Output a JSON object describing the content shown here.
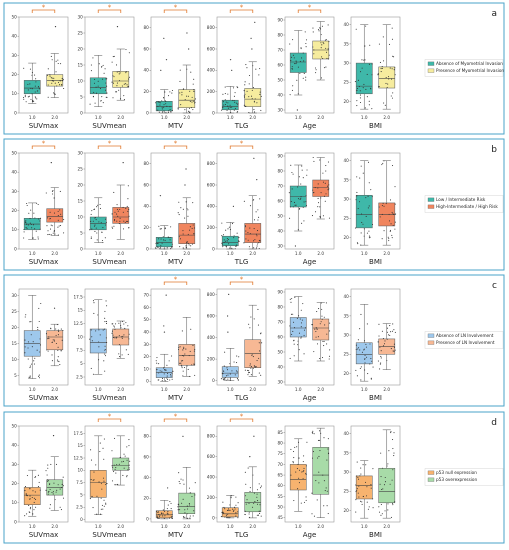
{
  "chart_data": [
    {
      "panel": "a",
      "type": "box",
      "categories": [
        "1.0",
        "2.0"
      ],
      "colors": [
        "#3fb8a9",
        "#f6ec9e"
      ],
      "legend": [
        "Absence of Myometrial Invasion",
        "Presence of Myometrial Invasion"
      ],
      "subplots": [
        {
          "label": "SUVmax",
          "yticks": [
            0,
            10,
            20,
            30,
            40,
            50
          ],
          "ylim": [
            0,
            50
          ],
          "sig": true,
          "boxes": [
            {
              "q1": 10,
              "median": 13,
              "q3": 17,
              "wlo": 5,
              "whi": 26
            },
            {
              "q1": 14,
              "median": 17,
              "q3": 20,
              "wlo": 8,
              "whi": 31
            }
          ],
          "outliers": [
            [],
            [
              45
            ]
          ]
        },
        {
          "label": "SUVmean",
          "yticks": [
            0,
            5,
            10,
            15,
            20,
            25,
            30
          ],
          "ylim": [
            0,
            30
          ],
          "sig": true,
          "boxes": [
            {
              "q1": 6,
              "median": 8,
              "q3": 11,
              "wlo": 2,
              "whi": 18
            },
            {
              "q1": 8,
              "median": 10,
              "q3": 13,
              "wlo": 4,
              "whi": 20
            }
          ],
          "outliers": [
            [],
            [
              27
            ]
          ]
        },
        {
          "label": "MTV",
          "yticks": [
            0,
            20,
            40,
            60,
            80
          ],
          "ylim": [
            0,
            90
          ],
          "sig": true,
          "boxes": [
            {
              "q1": 2,
              "median": 6,
              "q3": 11,
              "wlo": 0,
              "whi": 22
            },
            {
              "q1": 5,
              "median": 12,
              "q3": 22,
              "wlo": 0,
              "whi": 45
            }
          ],
          "outliers": [
            [
              40,
              50,
              70
            ],
            [
              60,
              75
            ]
          ]
        },
        {
          "label": "TLG",
          "yticks": [
            0,
            200,
            400,
            600,
            800
          ],
          "ylim": [
            0,
            900
          ],
          "sig": true,
          "boxes": [
            {
              "q1": 30,
              "median": 60,
              "q3": 120,
              "wlo": 0,
              "whi": 250
            },
            {
              "q1": 60,
              "median": 130,
              "q3": 230,
              "wlo": 0,
              "whi": 480
            }
          ],
          "outliers": [
            [
              400,
              500
            ],
            [
              600,
              700,
              850
            ]
          ]
        },
        {
          "label": "Age",
          "yticks": [
            30,
            40,
            50,
            60,
            70,
            80,
            90
          ],
          "ylim": [
            28,
            92
          ],
          "sig": true,
          "boxes": [
            {
              "q1": 55,
              "median": 62,
              "q3": 68,
              "wlo": 40,
              "whi": 83
            },
            {
              "q1": 64,
              "median": 70,
              "q3": 76,
              "wlo": 50,
              "whi": 89
            }
          ],
          "outliers": [
            [
              30
            ],
            []
          ]
        },
        {
          "label": "BMI",
          "yticks": [
            20,
            25,
            30,
            35,
            40
          ],
          "ylim": [
            17,
            42
          ],
          "sig": false,
          "boxes": [
            {
              "q1": 22,
              "median": 24,
              "q3": 30,
              "wlo": 18,
              "whi": 40
            },
            {
              "q1": 23.5,
              "median": 26,
              "q3": 29,
              "wlo": 18,
              "whi": 40
            }
          ],
          "outliers": [
            [],
            []
          ]
        }
      ]
    },
    {
      "panel": "b",
      "type": "box",
      "categories": [
        "1.0",
        "2.0"
      ],
      "colors": [
        "#3fb8a9",
        "#f0855e"
      ],
      "legend": [
        "Low / Intermediate Risk",
        "High-Intermediate / High Risk"
      ],
      "subplots": [
        {
          "label": "SUVmax",
          "yticks": [
            0,
            10,
            20,
            30,
            40,
            50
          ],
          "ylim": [
            0,
            50
          ],
          "sig": true,
          "boxes": [
            {
              "q1": 10,
              "median": 13,
              "q3": 16,
              "wlo": 5,
              "whi": 24
            },
            {
              "q1": 14,
              "median": 17,
              "q3": 21,
              "wlo": 7,
              "whi": 32
            }
          ],
          "outliers": [
            [],
            [
              45
            ]
          ]
        },
        {
          "label": "SUVmean",
          "yticks": [
            0,
            5,
            10,
            15,
            20,
            25,
            30
          ],
          "ylim": [
            0,
            30
          ],
          "sig": true,
          "boxes": [
            {
              "q1": 6,
              "median": 8,
              "q3": 10,
              "wlo": 2,
              "whi": 16
            },
            {
              "q1": 8,
              "median": 10,
              "q3": 13,
              "wlo": 3,
              "whi": 20
            }
          ],
          "outliers": [
            [],
            [
              27
            ]
          ]
        },
        {
          "label": "MTV",
          "yticks": [
            0,
            20,
            40,
            60,
            80
          ],
          "ylim": [
            0,
            90
          ],
          "sig": true,
          "boxes": [
            {
              "q1": 2,
              "median": 6,
              "q3": 11,
              "wlo": 0,
              "whi": 22
            },
            {
              "q1": 5,
              "median": 13,
              "q3": 24,
              "wlo": 0,
              "whi": 48
            }
          ],
          "outliers": [
            [
              50
            ],
            [
              60,
              75
            ]
          ]
        },
        {
          "label": "TLG",
          "yticks": [
            0,
            200,
            400,
            600,
            800
          ],
          "ylim": [
            0,
            900
          ],
          "sig": true,
          "boxes": [
            {
              "q1": 30,
              "median": 60,
              "q3": 120,
              "wlo": 0,
              "whi": 250
            },
            {
              "q1": 60,
              "median": 140,
              "q3": 240,
              "wlo": 0,
              "whi": 500
            }
          ],
          "outliers": [
            [
              400
            ],
            [
              650,
              850
            ]
          ]
        },
        {
          "label": "Age",
          "yticks": [
            30,
            40,
            50,
            60,
            70,
            80,
            90
          ],
          "ylim": [
            28,
            92
          ],
          "sig": false,
          "boxes": [
            {
              "q1": 56,
              "median": 63,
              "q3": 70,
              "wlo": 40,
              "whi": 84
            },
            {
              "q1": 63,
              "median": 69,
              "q3": 74,
              "wlo": 48,
              "whi": 89
            }
          ],
          "outliers": [
            [
              30
            ],
            []
          ]
        },
        {
          "label": "BMI",
          "yticks": [
            20,
            25,
            30,
            35,
            40
          ],
          "ylim": [
            17,
            42
          ],
          "sig": false,
          "boxes": [
            {
              "q1": 22.5,
              "median": 26,
              "q3": 31,
              "wlo": 18,
              "whi": 40
            },
            {
              "q1": 23,
              "median": 26,
              "q3": 29,
              "wlo": 18,
              "whi": 40
            }
          ],
          "outliers": [
            [],
            []
          ]
        }
      ]
    },
    {
      "panel": "c",
      "type": "box",
      "categories": [
        "1.0",
        "2.0"
      ],
      "colors": [
        "#9ec8ec",
        "#f7b894"
      ],
      "legend": [
        "Absence of LN Involvement",
        "Presence of LN Involvement"
      ],
      "subplots": [
        {
          "label": "SUVmax",
          "yticks": [
            5,
            10,
            15,
            20,
            25,
            30
          ],
          "ylim": [
            2,
            32
          ],
          "sig": false,
          "boxes": [
            {
              "q1": 11,
              "median": 15,
              "q3": 19,
              "wlo": 4,
              "whi": 30
            },
            {
              "q1": 13,
              "median": 17,
              "q3": 19,
              "wlo": 8,
              "whi": 21
            }
          ],
          "outliers": [
            [],
            [
              26
            ]
          ]
        },
        {
          "label": "SUVmean",
          "yticks": [
            2.5,
            5.0,
            7.5,
            10.0,
            12.5,
            15.0,
            17.5
          ],
          "ylim": [
            1,
            19
          ],
          "sig": false,
          "boxes": [
            {
              "q1": 7,
              "median": 9,
              "q3": 11.5,
              "wlo": 3,
              "whi": 17
            },
            {
              "q1": 8.5,
              "median": 10,
              "q3": 11.5,
              "wlo": 6,
              "whi": 13
            }
          ],
          "outliers": [
            [],
            []
          ]
        },
        {
          "label": "MTV",
          "yticks": [
            0,
            10,
            20,
            30,
            40,
            50,
            60,
            70
          ],
          "ylim": [
            -3,
            75
          ],
          "sig": true,
          "boxes": [
            {
              "q1": 3,
              "median": 7,
              "q3": 11,
              "wlo": 0,
              "whi": 22
            },
            {
              "q1": 13,
              "median": 21,
              "q3": 30,
              "wlo": 4,
              "whi": 52
            }
          ],
          "outliers": [
            [
              40,
              45,
              70
            ],
            []
          ]
        },
        {
          "label": "TLG",
          "yticks": [
            0,
            200,
            400,
            600,
            800
          ],
          "ylim": [
            -40,
            850
          ],
          "sig": true,
          "boxes": [
            {
              "q1": 30,
              "median": 70,
              "q3": 130,
              "wlo": 0,
              "whi": 300
            },
            {
              "q1": 120,
              "median": 250,
              "q3": 380,
              "wlo": 40,
              "whi": 700
            }
          ],
          "outliers": [
            [
              450,
              600,
              800
            ],
            []
          ]
        },
        {
          "label": "Age",
          "yticks": [
            30,
            40,
            50,
            60,
            70,
            80,
            90
          ],
          "ylim": [
            28,
            92
          ],
          "sig": false,
          "boxes": [
            {
              "q1": 60,
              "median": 66,
              "q3": 73,
              "wlo": 44,
              "whi": 87
            },
            {
              "q1": 58,
              "median": 66,
              "q3": 72,
              "wlo": 44,
              "whi": 83
            }
          ],
          "outliers": [
            [],
            []
          ]
        },
        {
          "label": "BMI",
          "yticks": [
            20,
            25,
            30,
            35,
            40
          ],
          "ylim": [
            17,
            42
          ],
          "sig": false,
          "boxes": [
            {
              "q1": 22.5,
              "median": 25,
              "q3": 28,
              "wlo": 18,
              "whi": 38
            },
            {
              "q1": 25,
              "median": 27,
              "q3": 29,
              "wlo": 21,
              "whi": 33
            }
          ],
          "outliers": [
            [],
            []
          ]
        }
      ]
    },
    {
      "panel": "d",
      "type": "box",
      "categories": [
        "1.0",
        "2.0"
      ],
      "colors": [
        "#f7b36f",
        "#a8dba8"
      ],
      "legend": [
        "p53 null expression",
        "p53 overexpression"
      ],
      "subplots": [
        {
          "label": "SUVmax",
          "yticks": [
            0,
            10,
            20,
            30,
            40,
            50
          ],
          "ylim": [
            0,
            50
          ],
          "sig": false,
          "boxes": [
            {
              "q1": 9,
              "median": 14,
              "q3": 18,
              "wlo": 3,
              "whi": 27
            },
            {
              "q1": 14,
              "median": 18,
              "q3": 22,
              "wlo": 6,
              "whi": 34
            }
          ],
          "outliers": [
            [],
            [
              45
            ]
          ]
        },
        {
          "label": "SUVmean",
          "yticks": [
            0,
            2.5,
            5.0,
            7.5,
            10.0,
            12.5,
            15.0,
            17.5
          ],
          "ylim": [
            -0.5,
            19
          ],
          "sig": true,
          "boxes": [
            {
              "q1": 4.5,
              "median": 7.5,
              "q3": 10,
              "wlo": 1,
              "whi": 17
            },
            {
              "q1": 10,
              "median": 11,
              "q3": 12.5,
              "wlo": 7,
              "whi": 17
            }
          ],
          "outliers": [
            [],
            []
          ]
        },
        {
          "label": "MTV",
          "yticks": [
            0,
            20,
            40,
            60,
            80
          ],
          "ylim": [
            -3,
            90
          ],
          "sig": true,
          "boxes": [
            {
              "q1": 1,
              "median": 4,
              "q3": 8,
              "wlo": 0,
              "whi": 18
            },
            {
              "q1": 5,
              "median": 12,
              "q3": 25,
              "wlo": 0,
              "whi": 50
            }
          ],
          "outliers": [
            [
              30
            ],
            [
              80
            ]
          ]
        },
        {
          "label": "TLG",
          "yticks": [
            0,
            200,
            400,
            600,
            800
          ],
          "ylim": [
            -40,
            900
          ],
          "sig": true,
          "boxes": [
            {
              "q1": 10,
              "median": 40,
              "q3": 100,
              "wlo": 0,
              "whi": 220
            },
            {
              "q1": 60,
              "median": 150,
              "q3": 250,
              "wlo": 0,
              "whi": 500
            }
          ],
          "outliers": [
            [],
            [
              600,
              800
            ]
          ]
        },
        {
          "label": "Age",
          "yticks": [
            45,
            50,
            55,
            60,
            65,
            70,
            75,
            80,
            85
          ],
          "ylim": [
            43,
            88
          ],
          "sig": false,
          "boxes": [
            {
              "q1": 58,
              "median": 63,
              "q3": 70,
              "wlo": 48,
              "whi": 82
            },
            {
              "q1": 56,
              "median": 65,
              "q3": 78,
              "wlo": 45,
              "whi": 87
            }
          ],
          "outliers": [
            [],
            []
          ]
        },
        {
          "label": "BMI",
          "yticks": [
            20,
            25,
            30,
            35,
            40
          ],
          "ylim": [
            17,
            42
          ],
          "sig": false,
          "boxes": [
            {
              "q1": 23,
              "median": 26.5,
              "q3": 29,
              "wlo": 18,
              "whi": 33
            },
            {
              "q1": 22,
              "median": 25,
              "q3": 31,
              "wlo": 18,
              "whi": 41
            }
          ],
          "outliers": [
            [],
            []
          ]
        }
      ]
    }
  ]
}
